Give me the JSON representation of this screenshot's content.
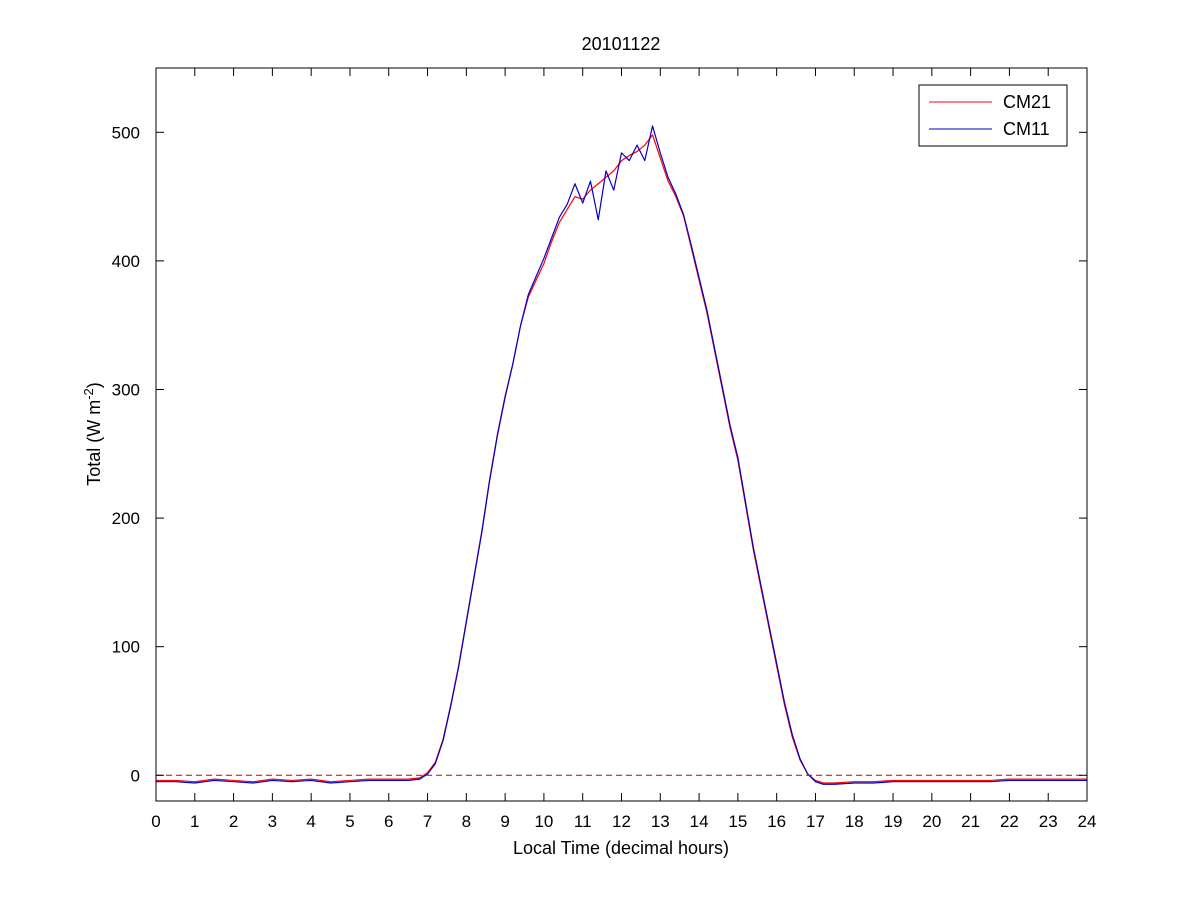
{
  "chart_data": {
    "type": "line",
    "title": "20101122",
    "xlabel": "Local Time (decimal hours)",
    "ylabel": {
      "main": "Total (W m",
      "superscript": "-2",
      "close": ")"
    },
    "xlim": [
      0,
      24
    ],
    "ylim": [
      -20,
      550
    ],
    "xticks": [
      "0",
      "1",
      "2",
      "3",
      "4",
      "5",
      "6",
      "7",
      "8",
      "9",
      "10",
      "11",
      "12",
      "13",
      "14",
      "15",
      "16",
      "17",
      "18",
      "19",
      "20",
      "21",
      "22",
      "23",
      "24"
    ],
    "yticks": [
      "0",
      "100",
      "200",
      "300",
      "400",
      "500"
    ],
    "grid": false,
    "legend": {
      "placement": "top-right"
    },
    "reference_line": {
      "y": 0,
      "style": "dashed",
      "color": "#cc0000"
    },
    "series": [
      {
        "name": "CM21",
        "color": "#ff0000",
        "x": [
          0,
          0.5,
          1,
          1.5,
          2,
          2.5,
          3,
          3.5,
          4,
          4.5,
          5,
          5.5,
          6,
          6.5,
          6.8,
          7.0,
          7.2,
          7.4,
          7.6,
          7.8,
          8.0,
          8.2,
          8.4,
          8.6,
          8.8,
          9.0,
          9.2,
          9.4,
          9.6,
          9.8,
          10.0,
          10.2,
          10.4,
          10.6,
          10.8,
          11.0,
          11.2,
          11.4,
          11.6,
          11.8,
          12.0,
          12.2,
          12.4,
          12.6,
          12.8,
          13.0,
          13.2,
          13.4,
          13.6,
          13.8,
          14.0,
          14.2,
          14.4,
          14.6,
          14.8,
          15.0,
          15.2,
          15.4,
          15.6,
          15.8,
          16.0,
          16.2,
          16.4,
          16.6,
          16.8,
          17.0,
          17.2,
          17.5,
          18,
          18.5,
          19,
          19.5,
          20,
          20.5,
          21,
          21.5,
          22,
          22.5,
          23,
          23.5,
          24
        ],
        "values": [
          -4,
          -4,
          -5,
          -3,
          -4,
          -5,
          -3,
          -4,
          -3,
          -5,
          -4,
          -3,
          -3,
          -3,
          -2,
          2,
          10,
          28,
          55,
          85,
          120,
          155,
          190,
          230,
          265,
          295,
          320,
          350,
          372,
          385,
          398,
          415,
          430,
          440,
          450,
          448,
          455,
          460,
          465,
          470,
          478,
          482,
          485,
          490,
          498,
          480,
          462,
          450,
          435,
          410,
          385,
          360,
          330,
          300,
          270,
          245,
          210,
          175,
          145,
          115,
          85,
          55,
          30,
          12,
          1,
          -4,
          -6,
          -6,
          -5,
          -5,
          -4,
          -4,
          -4,
          -4,
          -4,
          -4,
          -3,
          -3,
          -3,
          -3,
          -3
        ]
      },
      {
        "name": "CM11",
        "color": "#0000cc",
        "x": [
          0,
          0.5,
          1,
          1.5,
          2,
          2.5,
          3,
          3.5,
          4,
          4.5,
          5,
          5.5,
          6,
          6.5,
          6.8,
          7.0,
          7.2,
          7.4,
          7.6,
          7.8,
          8.0,
          8.2,
          8.4,
          8.6,
          8.8,
          9.0,
          9.2,
          9.4,
          9.6,
          9.8,
          10.0,
          10.2,
          10.4,
          10.6,
          10.8,
          11.0,
          11.2,
          11.4,
          11.6,
          11.8,
          12.0,
          12.2,
          12.4,
          12.6,
          12.8,
          13.0,
          13.2,
          13.4,
          13.6,
          13.8,
          14.0,
          14.2,
          14.4,
          14.6,
          14.8,
          15.0,
          15.2,
          15.4,
          15.6,
          15.8,
          16.0,
          16.2,
          16.4,
          16.6,
          16.8,
          17.0,
          17.2,
          17.5,
          18,
          18.5,
          19,
          19.5,
          20,
          20.5,
          21,
          21.5,
          22,
          22.5,
          23,
          23.5,
          24
        ],
        "values": [
          -5,
          -5,
          -6,
          -4,
          -5,
          -6,
          -4,
          -5,
          -4,
          -6,
          -5,
          -4,
          -4,
          -4,
          -3,
          1,
          9,
          27,
          54,
          84,
          119,
          154,
          189,
          229,
          264,
          294,
          320,
          350,
          374,
          388,
          402,
          418,
          434,
          444,
          460,
          445,
          462,
          432,
          470,
          455,
          484,
          478,
          490,
          478,
          505,
          484,
          465,
          452,
          436,
          412,
          387,
          362,
          332,
          302,
          272,
          247,
          212,
          177,
          147,
          117,
          87,
          57,
          32,
          13,
          1,
          -5,
          -7,
          -7,
          -6,
          -6,
          -5,
          -5,
          -5,
          -5,
          -5,
          -5,
          -4,
          -4,
          -4,
          -4,
          -4
        ]
      }
    ]
  }
}
